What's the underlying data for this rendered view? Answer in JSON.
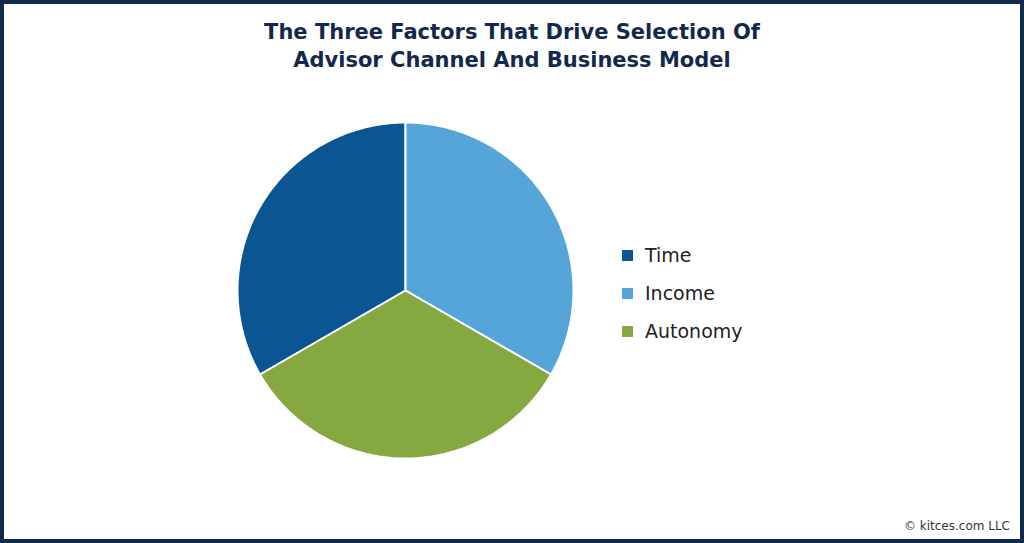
{
  "chart_data": {
    "type": "pie",
    "title": "The Three Factors That Drive Selection Of Advisor Channel And Business Model",
    "categories": [
      "Time",
      "Income",
      "Autonomy"
    ],
    "values": [
      33.3,
      33.3,
      33.3
    ],
    "colors": [
      "#0b5592",
      "#56a5d9",
      "#85a940"
    ],
    "legend": "right",
    "caption": "© kitces.com LLC"
  }
}
